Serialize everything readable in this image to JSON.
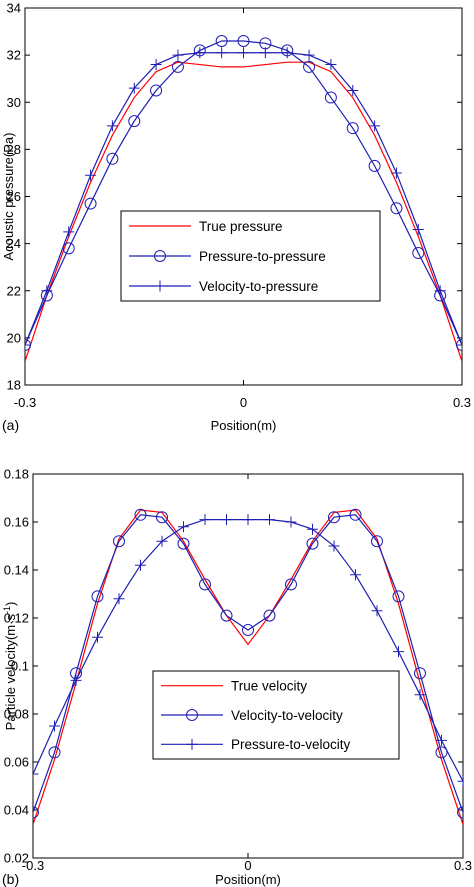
{
  "chart_data": [
    {
      "type": "line",
      "panel_label": "(a)",
      "xlabel": "Position(m)",
      "ylabel": "Acoustic pressure(Pa)",
      "xlim": [
        -0.3,
        0.3
      ],
      "ylim": [
        18,
        34
      ],
      "xticks": [
        -0.3,
        0,
        0.3
      ],
      "xtick_labels": [
        "-0.3",
        "0",
        "0.3"
      ],
      "yticks": [
        18,
        20,
        22,
        24,
        26,
        28,
        30,
        32,
        34
      ],
      "ytick_labels": [
        "18",
        "20",
        "22",
        "24",
        "26",
        "28",
        "30",
        "32",
        "34"
      ],
      "grid": false,
      "legend_position": "center",
      "series": [
        {
          "name": "True pressure",
          "color": "#ff0000",
          "marker": "none",
          "x": [
            -0.3,
            -0.27,
            -0.24,
            -0.21,
            -0.18,
            -0.15,
            -0.12,
            -0.09,
            -0.06,
            -0.03,
            0,
            0.03,
            0.06,
            0.09,
            0.12,
            0.15,
            0.18,
            0.21,
            0.24,
            0.27,
            0.3
          ],
          "y": [
            19.0,
            21.8,
            24.3,
            26.6,
            28.6,
            30.2,
            31.3,
            31.7,
            31.6,
            31.5,
            31.5,
            31.6,
            31.7,
            31.7,
            31.3,
            30.2,
            28.6,
            26.6,
            24.3,
            21.8,
            19.0
          ]
        },
        {
          "name": "Pressure-to-pressure",
          "color": "#1f1fb4",
          "marker": "circle",
          "x": [
            -0.3,
            -0.27,
            -0.24,
            -0.21,
            -0.18,
            -0.15,
            -0.12,
            -0.09,
            -0.06,
            -0.03,
            0,
            0.03,
            0.06,
            0.09,
            0.12,
            0.15,
            0.18,
            0.21,
            0.24,
            0.27,
            0.3
          ],
          "y": [
            19.7,
            21.8,
            23.8,
            25.7,
            27.6,
            29.2,
            30.5,
            31.5,
            32.2,
            32.6,
            32.6,
            32.5,
            32.2,
            31.5,
            30.2,
            28.9,
            27.3,
            25.5,
            23.6,
            21.8,
            19.7
          ]
        },
        {
          "name": "Velocity-to-pressure",
          "color": "#1f1fb4",
          "marker": "plus",
          "x": [
            -0.3,
            -0.27,
            -0.24,
            -0.21,
            -0.18,
            -0.15,
            -0.12,
            -0.09,
            -0.06,
            -0.03,
            0,
            0.03,
            0.06,
            0.09,
            0.12,
            0.15,
            0.18,
            0.21,
            0.24,
            0.27,
            0.3
          ],
          "y": [
            19.7,
            22.0,
            24.5,
            26.9,
            29.0,
            30.6,
            31.6,
            32.0,
            32.1,
            32.1,
            32.1,
            32.1,
            32.1,
            32.0,
            31.6,
            30.5,
            29.0,
            27.0,
            24.6,
            22.0,
            19.7
          ]
        }
      ]
    },
    {
      "type": "line",
      "panel_label": "(b)",
      "xlabel": "Position(m)",
      "ylabel": "Particle velocity(m·s",
      "ylabel_sup": "-1",
      "ylabel_close": ")",
      "xlim": [
        -0.3,
        0.3
      ],
      "ylim": [
        0.02,
        0.18
      ],
      "xticks": [
        -0.3,
        0,
        0.3
      ],
      "xtick_labels": [
        "-0.3",
        "0",
        "0.3"
      ],
      "yticks": [
        0.02,
        0.04,
        0.06,
        0.08,
        0.1,
        0.12,
        0.14,
        0.16,
        0.18
      ],
      "ytick_labels": [
        "0.02",
        "0.04",
        "0.06",
        "0.08",
        "0.1",
        "0.12",
        "0.14",
        "0.16",
        "0.18"
      ],
      "grid": false,
      "legend_position": "bottom-center",
      "series": [
        {
          "name": "True velocity",
          "color": "#ff0000",
          "marker": "none",
          "x": [
            -0.3,
            -0.27,
            -0.24,
            -0.21,
            -0.18,
            -0.15,
            -0.12,
            -0.09,
            -0.06,
            -0.03,
            0,
            0.03,
            0.06,
            0.09,
            0.12,
            0.15,
            0.18,
            0.21,
            0.24,
            0.27,
            0.3
          ],
          "y": [
            0.034,
            0.061,
            0.093,
            0.126,
            0.153,
            0.165,
            0.164,
            0.152,
            0.136,
            0.121,
            0.109,
            0.121,
            0.136,
            0.152,
            0.164,
            0.165,
            0.153,
            0.126,
            0.093,
            0.061,
            0.034
          ]
        },
        {
          "name": "Velocity-to-velocity",
          "color": "#1f1fb4",
          "marker": "circle",
          "x": [
            -0.3,
            -0.27,
            -0.24,
            -0.21,
            -0.18,
            -0.15,
            -0.12,
            -0.09,
            -0.06,
            -0.03,
            0,
            0.03,
            0.06,
            0.09,
            0.12,
            0.15,
            0.18,
            0.21,
            0.24,
            0.27,
            0.3
          ],
          "y": [
            0.039,
            0.064,
            0.097,
            0.129,
            0.152,
            0.163,
            0.162,
            0.151,
            0.134,
            0.121,
            0.115,
            0.121,
            0.134,
            0.151,
            0.162,
            0.163,
            0.152,
            0.129,
            0.097,
            0.064,
            0.039
          ]
        },
        {
          "name": "Pressure-to-velocity",
          "color": "#1f1fb4",
          "marker": "plus",
          "x": [
            -0.3,
            -0.27,
            -0.24,
            -0.21,
            -0.18,
            -0.15,
            -0.12,
            -0.09,
            -0.06,
            -0.03,
            0,
            0.03,
            0.06,
            0.09,
            0.12,
            0.15,
            0.18,
            0.21,
            0.24,
            0.27,
            0.3
          ],
          "y": [
            0.055,
            0.075,
            0.094,
            0.112,
            0.128,
            0.142,
            0.152,
            0.158,
            0.161,
            0.161,
            0.161,
            0.161,
            0.16,
            0.157,
            0.15,
            0.138,
            0.123,
            0.106,
            0.088,
            0.069,
            0.052
          ]
        }
      ]
    }
  ]
}
